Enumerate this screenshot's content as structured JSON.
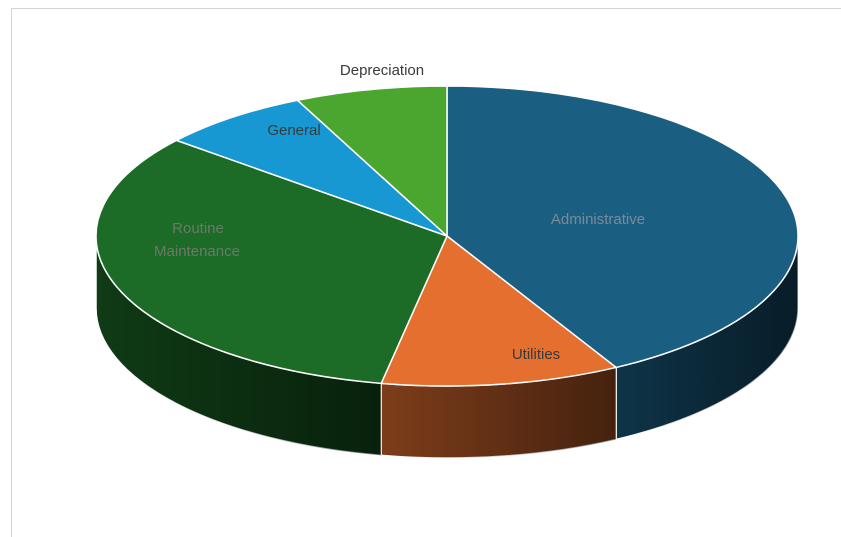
{
  "chart_data": {
    "type": "pie",
    "title": "",
    "style": "3d",
    "legend": "none",
    "categories": [
      "Administrative",
      "Utilities",
      "Routine Maintenance",
      "General",
      "Depreciation"
    ],
    "values": [
      42,
      11,
      33,
      7,
      7
    ],
    "unit": "percent (estimated from slice angles)",
    "colors": [
      "#1a5f82",
      "#e46f2f",
      "#1c6b26",
      "#1798d2",
      "#4aa62f"
    ],
    "label_colors": [
      "#7a8a96",
      "#3a3a3a",
      "#6a7a6a",
      "#3a3a3a",
      "#3a3a3a"
    ],
    "labels": {
      "administrative": "Administrative",
      "utilities": "Utilities",
      "routine_line1": "Routine",
      "routine_line2": "Maintenance",
      "general": "General",
      "depreciation": "Depreciation"
    }
  }
}
